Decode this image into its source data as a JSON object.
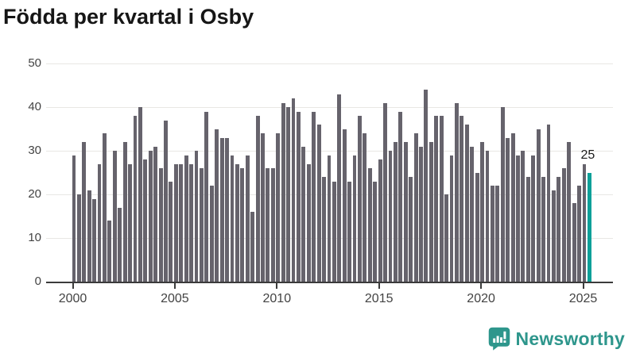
{
  "title": "Födda per kvartal i Osby",
  "chart_data": {
    "type": "bar",
    "title": "Födda per kvartal i Osby",
    "x_tick_labels": [
      "2000",
      "2005",
      "2010",
      "2015",
      "2020",
      "2025"
    ],
    "y_ticks": [
      0,
      10,
      20,
      30,
      40,
      50
    ],
    "ylim": [
      0,
      50
    ],
    "grid": true,
    "legend": false,
    "frequency": "quarterly",
    "start_period": "2000-Q1",
    "end_period": "2025-Q2",
    "values": [
      29,
      20,
      32,
      21,
      19,
      27,
      34,
      14,
      30,
      17,
      32,
      27,
      38,
      40,
      28,
      30,
      31,
      26,
      37,
      23,
      27,
      27,
      29,
      27,
      30,
      26,
      39,
      22,
      35,
      33,
      33,
      29,
      27,
      26,
      29,
      16,
      38,
      34,
      26,
      26,
      34,
      41,
      40,
      42,
      39,
      31,
      27,
      39,
      36,
      24,
      29,
      23,
      43,
      35,
      23,
      29,
      38,
      34,
      26,
      23,
      28,
      41,
      30,
      32,
      39,
      32,
      24,
      34,
      31,
      44,
      32,
      38,
      38,
      20,
      29,
      41,
      38,
      36,
      31,
      25,
      32,
      30,
      22,
      22,
      40,
      33,
      34,
      29,
      30,
      24,
      29,
      35,
      24,
      36,
      21,
      24,
      26,
      32,
      18,
      22,
      27,
      25
    ],
    "bar_color": "#66636c",
    "highlight": {
      "index": 101,
      "period": "2025-Q2",
      "value": 25,
      "label": "25",
      "color": "#0da099"
    }
  },
  "branding": {
    "name": "Newsworthy",
    "color": "#2e968c",
    "icon": "speech-bubble-bar-chart"
  }
}
